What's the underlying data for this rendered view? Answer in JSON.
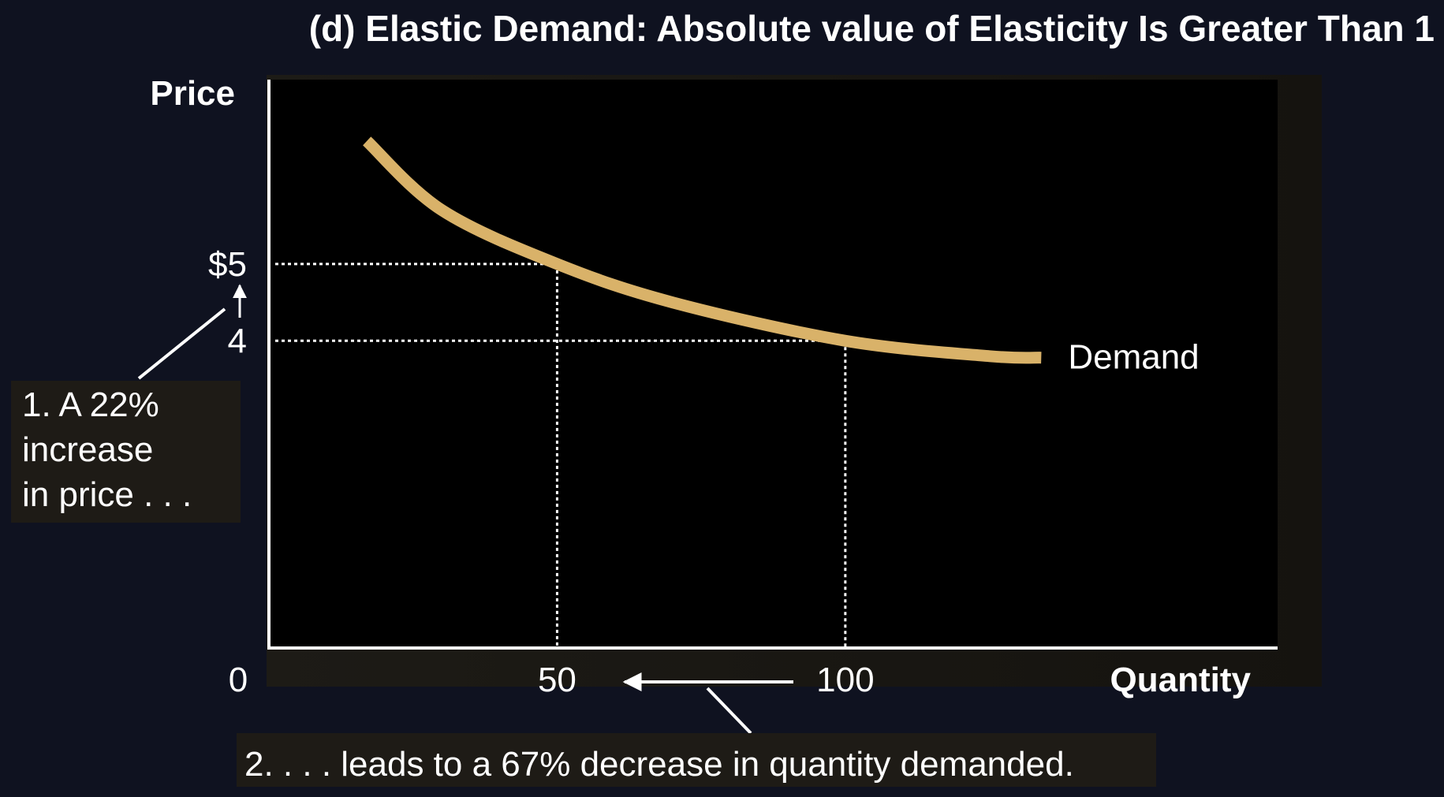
{
  "chart_data": {
    "type": "line",
    "title": "(d) Elastic Demand: Absolute value of Elasticity Is Greater Than 1",
    "xlabel": "Quantity",
    "ylabel": "Price",
    "origin_label": "0",
    "xlim": [
      0,
      175
    ],
    "ylim": [
      0,
      7.4
    ],
    "x_ticks": [
      {
        "value": 50,
        "label": "50"
      },
      {
        "value": 100,
        "label": "100"
      }
    ],
    "y_ticks": [
      {
        "value": 5,
        "label": "$5"
      },
      {
        "value": 4,
        "label": "4"
      }
    ],
    "series": [
      {
        "name": "Demand",
        "color": "#d9b269",
        "x": [
          17,
          30,
          50,
          70,
          100,
          125,
          134
        ],
        "y": [
          6.6,
          5.7,
          5.0,
          4.5,
          4.0,
          3.8,
          3.78
        ]
      }
    ],
    "reference_points": [
      {
        "x": 50,
        "y": 5
      },
      {
        "x": 100,
        "y": 4
      }
    ],
    "grid": false,
    "annotations": {
      "price_note": [
        "1. A 22%",
        "increase",
        "in price . . ."
      ],
      "quantity_note": "2. . . . leads to a 67% decrease in quantity demanded."
    },
    "colors": {
      "background": "#0f1220",
      "plot_background": "#000000",
      "note_box": "#1e1b16",
      "axes": "#ffffff",
      "curve": "#d9b269"
    }
  }
}
